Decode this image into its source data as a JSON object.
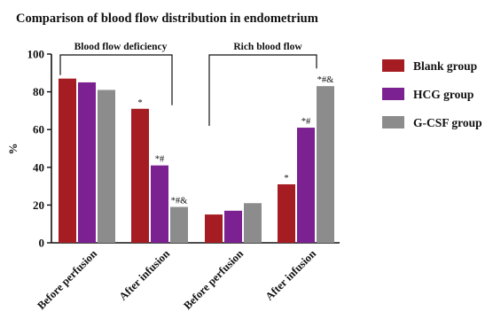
{
  "chart_data": {
    "type": "bar",
    "title": "Comparison of blood flow distribution in endometrium",
    "ylabel": "%",
    "xlabel": "",
    "ylim": [
      0,
      100
    ],
    "yticks": [
      0,
      20,
      40,
      60,
      80,
      100
    ],
    "categories": [
      "Before perfusion",
      "After infusion",
      "Before perfusion",
      "After infusion"
    ],
    "series": [
      {
        "name": "Blank group",
        "color": "#a51d22",
        "values": [
          87,
          71,
          15,
          31
        ],
        "annotations": [
          "",
          "*",
          "",
          "*"
        ]
      },
      {
        "name": "HCG group",
        "color": "#7b2191",
        "values": [
          85,
          41,
          17,
          61
        ],
        "annotations": [
          "",
          "*#",
          "",
          "*#"
        ]
      },
      {
        "name": "G-CSF group",
        "color": "#8c8c8c",
        "values": [
          81,
          19,
          21,
          83
        ],
        "annotations": [
          "",
          "*#&",
          "",
          "*#&"
        ]
      }
    ],
    "brackets": [
      {
        "label": "Blood flow deficiency",
        "from": 0,
        "to": 1
      },
      {
        "label": "Rich blood flow",
        "from": 2,
        "to": 3
      }
    ],
    "legend_position": "right",
    "grid": false
  }
}
